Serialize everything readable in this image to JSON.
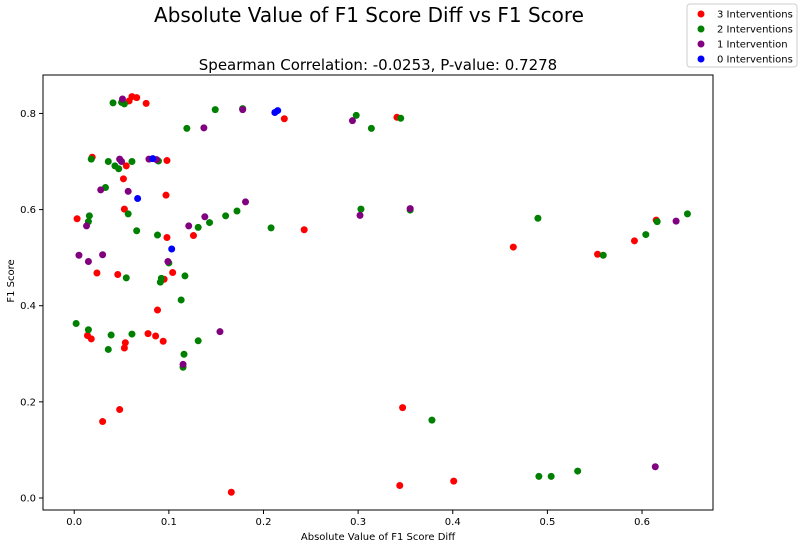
{
  "chart_data": {
    "type": "scatter",
    "title": "Absolute Value of F1 Score Diff vs F1 Score",
    "subtitle": "Spearman Correlation: -0.0253, P-value: 0.7278",
    "xlabel": "Absolute Value of F1 Score Diff",
    "ylabel": "F1 Score",
    "xlim": [
      -0.033,
      0.675
    ],
    "ylim": [
      -0.025,
      0.88
    ],
    "xticks": [
      "0.0",
      "0.1",
      "0.2",
      "0.3",
      "0.4",
      "0.5",
      "0.6"
    ],
    "yticks": [
      "0.0",
      "0.2",
      "0.4",
      "0.6",
      "0.8"
    ],
    "grid": false,
    "legend_position": "top-right",
    "series": [
      {
        "name": "3 Interventions",
        "color": "#ff0000",
        "points": [
          [
            0.003,
            0.581
          ],
          [
            0.014,
            0.338
          ],
          [
            0.018,
            0.331
          ],
          [
            0.019,
            0.709
          ],
          [
            0.024,
            0.468
          ],
          [
            0.03,
            0.159
          ],
          [
            0.046,
            0.465
          ],
          [
            0.048,
            0.184
          ],
          [
            0.053,
            0.601
          ],
          [
            0.053,
            0.312
          ],
          [
            0.054,
            0.323
          ],
          [
            0.052,
            0.664
          ],
          [
            0.055,
            0.691
          ],
          [
            0.058,
            0.826
          ],
          [
            0.061,
            0.835
          ],
          [
            0.066,
            0.833
          ],
          [
            0.076,
            0.821
          ],
          [
            0.078,
            0.342
          ],
          [
            0.086,
            0.337
          ],
          [
            0.088,
            0.391
          ],
          [
            0.094,
            0.326
          ],
          [
            0.095,
            0.455
          ],
          [
            0.098,
            0.702
          ],
          [
            0.097,
            0.63
          ],
          [
            0.098,
            0.542
          ],
          [
            0.104,
            0.469
          ],
          [
            0.126,
            0.546
          ],
          [
            0.166,
            0.012
          ],
          [
            0.222,
            0.789
          ],
          [
            0.243,
            0.558
          ],
          [
            0.341,
            0.792
          ],
          [
            0.344,
            0.026
          ],
          [
            0.347,
            0.188
          ],
          [
            0.401,
            0.035
          ],
          [
            0.464,
            0.522
          ],
          [
            0.553,
            0.507
          ],
          [
            0.592,
            0.535
          ],
          [
            0.615,
            0.578
          ]
        ]
      },
      {
        "name": "2 Interventions",
        "color": "#008000",
        "points": [
          [
            0.002,
            0.363
          ],
          [
            0.015,
            0.35
          ],
          [
            0.016,
            0.587
          ],
          [
            0.015,
            0.575
          ],
          [
            0.018,
            0.705
          ],
          [
            0.033,
            0.646
          ],
          [
            0.036,
            0.309
          ],
          [
            0.036,
            0.7
          ],
          [
            0.039,
            0.339
          ],
          [
            0.041,
            0.822
          ],
          [
            0.043,
            0.691
          ],
          [
            0.047,
            0.685
          ],
          [
            0.05,
            0.823
          ],
          [
            0.053,
            0.82
          ],
          [
            0.055,
            0.458
          ],
          [
            0.057,
            0.591
          ],
          [
            0.061,
            0.341
          ],
          [
            0.061,
            0.7
          ],
          [
            0.066,
            0.556
          ],
          [
            0.088,
            0.547
          ],
          [
            0.089,
            0.701
          ],
          [
            0.091,
            0.449
          ],
          [
            0.092,
            0.457
          ],
          [
            0.1,
            0.489
          ],
          [
            0.113,
            0.412
          ],
          [
            0.115,
            0.272
          ],
          [
            0.116,
            0.299
          ],
          [
            0.117,
            0.462
          ],
          [
            0.119,
            0.769
          ],
          [
            0.131,
            0.563
          ],
          [
            0.131,
            0.327
          ],
          [
            0.143,
            0.573
          ],
          [
            0.149,
            0.808
          ],
          [
            0.16,
            0.587
          ],
          [
            0.172,
            0.597
          ],
          [
            0.178,
            0.81
          ],
          [
            0.208,
            0.562
          ],
          [
            0.298,
            0.796
          ],
          [
            0.303,
            0.601
          ],
          [
            0.314,
            0.769
          ],
          [
            0.345,
            0.79
          ],
          [
            0.355,
            0.599
          ],
          [
            0.378,
            0.162
          ],
          [
            0.49,
            0.582
          ],
          [
            0.491,
            0.045
          ],
          [
            0.504,
            0.045
          ],
          [
            0.532,
            0.056
          ],
          [
            0.559,
            0.505
          ],
          [
            0.604,
            0.548
          ],
          [
            0.616,
            0.575
          ],
          [
            0.648,
            0.591
          ]
        ]
      },
      {
        "name": "1 Intervention",
        "color": "#800080",
        "points": [
          [
            0.005,
            0.505
          ],
          [
            0.013,
            0.566
          ],
          [
            0.015,
            0.492
          ],
          [
            0.028,
            0.641
          ],
          [
            0.03,
            0.506
          ],
          [
            0.048,
            0.705
          ],
          [
            0.05,
            0.7
          ],
          [
            0.051,
            0.83
          ],
          [
            0.057,
            0.638
          ],
          [
            0.079,
            0.705
          ],
          [
            0.087,
            0.704
          ],
          [
            0.099,
            0.492
          ],
          [
            0.115,
            0.278
          ],
          [
            0.121,
            0.566
          ],
          [
            0.137,
            0.77
          ],
          [
            0.138,
            0.585
          ],
          [
            0.154,
            0.346
          ],
          [
            0.178,
            0.808
          ],
          [
            0.181,
            0.616
          ],
          [
            0.294,
            0.785
          ],
          [
            0.302,
            0.588
          ],
          [
            0.355,
            0.602
          ],
          [
            0.614,
            0.065
          ],
          [
            0.636,
            0.576
          ]
        ]
      },
      {
        "name": "0 Interventions",
        "color": "#0000ff",
        "points": [
          [
            0.067,
            0.623
          ],
          [
            0.083,
            0.706
          ],
          [
            0.103,
            0.518
          ],
          [
            0.212,
            0.802
          ],
          [
            0.215,
            0.806
          ]
        ]
      }
    ]
  }
}
